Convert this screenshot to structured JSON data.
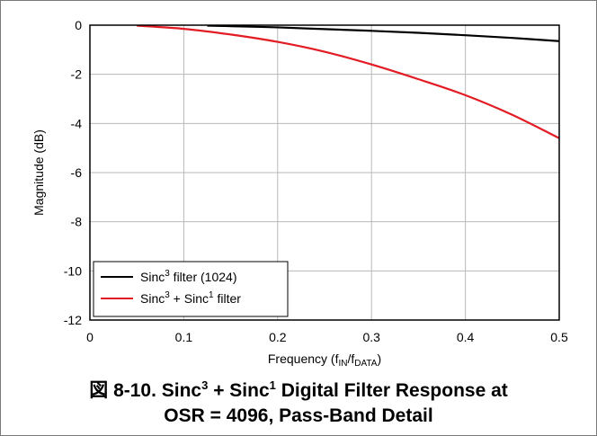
{
  "chart_data": {
    "type": "line",
    "xlabel": {
      "text": "Frequency (f",
      "sub1": "IN",
      "mid": "/f",
      "sub2": "DATA",
      "end": ")"
    },
    "ylabel": "Magnitude (dB)",
    "xlim": [
      0,
      0.5
    ],
    "ylim": [
      -12,
      0
    ],
    "xticks": [
      "0",
      "0.1",
      "0.2",
      "0.3",
      "0.4",
      "0.5"
    ],
    "yticks": [
      "0",
      "-2",
      "-4",
      "-6",
      "-8",
      "-10",
      "-12"
    ],
    "xtick_values": [
      0,
      0.1,
      0.2,
      0.3,
      0.4,
      0.5
    ],
    "ytick_values": [
      0,
      -2,
      -4,
      -6,
      -8,
      -10,
      -12
    ],
    "grid": true,
    "legend_position": "bottom-left",
    "series": [
      {
        "legend": {
          "pre": "Sinc",
          "sup": "3",
          "post": " filter (1024)"
        },
        "color": "#000000",
        "x": [
          0.125,
          0.15,
          0.2,
          0.25,
          0.3,
          0.35,
          0.4,
          0.45,
          0.5
        ],
        "y": [
          -0.02,
          -0.04,
          -0.09,
          -0.16,
          -0.23,
          -0.31,
          -0.41,
          -0.52,
          -0.65
        ]
      },
      {
        "legend": {
          "pre": "Sinc",
          "sup": "3",
          "mid": " + Sinc",
          "sup2": "1",
          "post": " filter"
        },
        "color": "#e31b23",
        "x": [
          0.05,
          0.1,
          0.15,
          0.2,
          0.25,
          0.3,
          0.35,
          0.4,
          0.45,
          0.5
        ],
        "y": [
          -0.02,
          -0.15,
          -0.38,
          -0.68,
          -1.08,
          -1.6,
          -2.2,
          -2.85,
          -3.65,
          -4.6
        ]
      }
    ]
  },
  "caption": {
    "prefix": "図 8-10. Sinc",
    "sup1": "3",
    "mid": " + Sinc",
    "sup2": "1",
    "suffix": " Digital Filter Response at",
    "line2": "OSR = 4096, Pass-Band Detail"
  }
}
